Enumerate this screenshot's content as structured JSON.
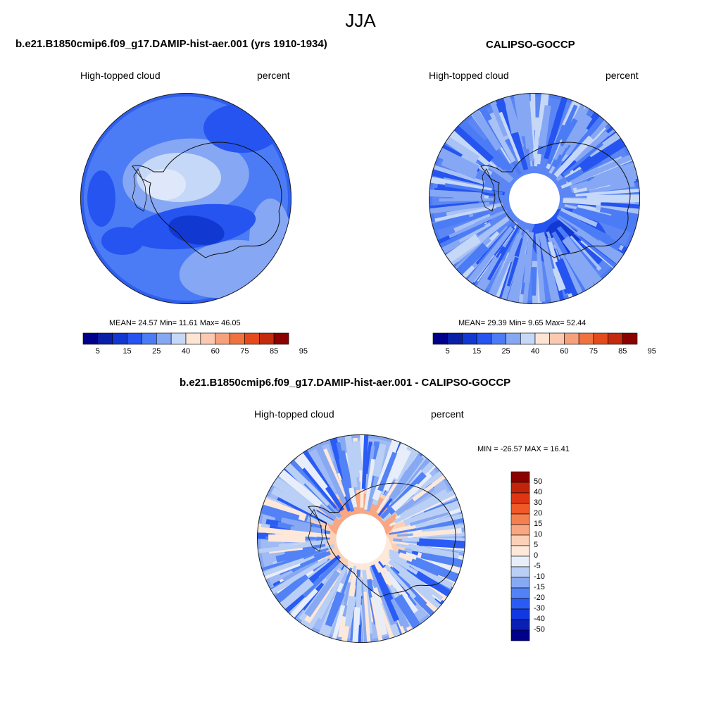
{
  "title": "JJA",
  "palette": {
    "sequential": [
      "#00008b",
      "#0a1fa8",
      "#1238d2",
      "#2554f0",
      "#4c7cf5",
      "#86a7f4",
      "#c6d8f7",
      "#fde4d3",
      "#fcc8b0",
      "#f7a07c",
      "#f0723f",
      "#e44a1c",
      "#c42a0c",
      "#8b0000"
    ],
    "difference": [
      "#00008b",
      "#0a20b3",
      "#1238e0",
      "#2a5cf5",
      "#5282f5",
      "#87a9f3",
      "#b9cff5",
      "#e8eef9",
      "#fde8da",
      "#fcd0b6",
      "#f8a782",
      "#f57f4f",
      "#ef5a26",
      "#e03512",
      "#c0240a",
      "#8b0000"
    ]
  },
  "panels": [
    {
      "title": "b.e21.B1850cmip6.f09_g17.DAMIP-hist-aer.001 (yrs 1910-1934)",
      "left_label": "High-topped cloud",
      "right_label": "percent",
      "stats": "MEAN=  24.57  Min=  11.61  Max=  46.05",
      "colorbar_ticks": [
        "5",
        "15",
        "25",
        "40",
        "60",
        "75",
        "85",
        "95"
      ]
    },
    {
      "title": "CALIPSO-GOCCP",
      "left_label": "High-topped cloud",
      "right_label": "percent",
      "stats": "MEAN=  29.39  Min=   9.65  Max=  52.44",
      "colorbar_ticks": [
        "5",
        "15",
        "25",
        "40",
        "60",
        "75",
        "85",
        "95"
      ]
    },
    {
      "title": "b.e21.B1850cmip6.f09_g17.DAMIP-hist-aer.001 - CALIPSO-GOCCP",
      "left_label": "High-topped cloud",
      "right_label": "percent",
      "stats": "MIN = -26.57 MAX =  16.41",
      "colorbar_ticks": [
        "50",
        "40",
        "30",
        "20",
        "15",
        "10",
        "5",
        "0",
        "-5",
        "-10",
        "-15",
        "-20",
        "-30",
        "-40",
        "-50"
      ]
    }
  ]
}
